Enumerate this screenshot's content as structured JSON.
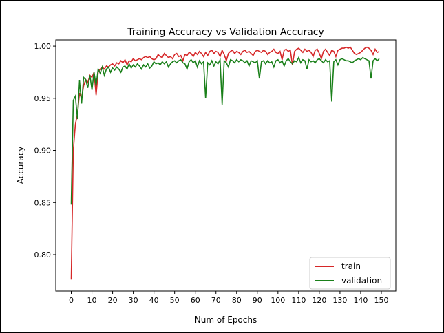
{
  "chart_data": {
    "type": "line",
    "title": "Training Accuracy vs Validation Accuracy",
    "xlabel": "Num of Epochs",
    "ylabel": "Accuracy",
    "xlim": [
      -7.5,
      157
    ],
    "ylim": [
      0.765,
      1.006
    ],
    "xticks": [
      0,
      10,
      20,
      30,
      40,
      50,
      60,
      70,
      80,
      90,
      100,
      110,
      120,
      130,
      140,
      150
    ],
    "yticks": [
      "0.80",
      "0.85",
      "0.90",
      "0.95",
      "1.00"
    ],
    "ytick_values": [
      0.8,
      0.85,
      0.9,
      0.95,
      1.0
    ],
    "grid": false,
    "legend_position": "lower-right",
    "series": [
      {
        "name": "train",
        "color": "#d62728",
        "values": [
          0.776,
          0.9,
          0.925,
          0.935,
          0.955,
          0.95,
          0.962,
          0.968,
          0.965,
          0.972,
          0.97,
          0.975,
          0.953,
          0.975,
          0.978,
          0.98,
          0.978,
          0.981,
          0.98,
          0.982,
          0.983,
          0.981,
          0.984,
          0.983,
          0.986,
          0.984,
          0.987,
          0.982,
          0.986,
          0.985,
          0.988,
          0.986,
          0.987,
          0.988,
          0.987,
          0.989,
          0.99,
          0.989,
          0.99,
          0.988,
          0.987,
          0.988,
          0.992,
          0.99,
          0.989,
          0.993,
          0.991,
          0.989,
          0.99,
          0.988,
          0.992,
          0.993,
          0.99,
          0.991,
          0.986,
          0.992,
          0.991,
          0.994,
          0.993,
          0.99,
          0.994,
          0.992,
          0.995,
          0.993,
          0.99,
          0.994,
          0.991,
          0.995,
          0.996,
          0.993,
          0.995,
          0.994,
          0.99,
          0.996,
          0.992,
          0.986,
          0.993,
          0.995,
          0.996,
          0.993,
          0.995,
          0.994,
          0.992,
          0.995,
          0.996,
          0.994,
          0.995,
          0.993,
          0.991,
          0.995,
          0.996,
          0.995,
          0.994,
          0.996,
          0.995,
          0.992,
          0.994,
          0.995,
          0.997,
          0.994,
          0.993,
          0.995,
          0.987,
          0.996,
          0.997,
          0.995,
          0.996,
          0.982,
          0.995,
          0.997,
          0.998,
          0.996,
          0.994,
          0.997,
          0.995,
          0.996,
          0.994,
          0.99,
          0.996,
          0.997,
          0.993,
          0.988,
          0.995,
          0.997,
          0.994,
          0.991,
          0.996,
          0.995,
          0.99,
          0.996,
          0.997,
          0.998,
          0.998,
          0.999,
          0.998,
          0.999,
          0.996,
          0.993,
          0.992,
          0.993,
          0.994,
          0.996,
          0.998,
          0.999,
          0.998,
          0.996,
          0.992,
          0.997,
          0.994,
          0.995
        ]
      },
      {
        "name": "validation",
        "color": "#1a801a",
        "values": [
          0.848,
          0.948,
          0.952,
          0.93,
          0.967,
          0.945,
          0.97,
          0.968,
          0.96,
          0.972,
          0.958,
          0.975,
          0.962,
          0.978,
          0.974,
          0.98,
          0.972,
          0.978,
          0.98,
          0.975,
          0.979,
          0.977,
          0.98,
          0.978,
          0.975,
          0.98,
          0.981,
          0.978,
          0.983,
          0.979,
          0.982,
          0.98,
          0.983,
          0.981,
          0.978,
          0.982,
          0.98,
          0.983,
          0.979,
          0.981,
          0.985,
          0.983,
          0.984,
          0.982,
          0.985,
          0.983,
          0.985,
          0.98,
          0.983,
          0.985,
          0.986,
          0.984,
          0.986,
          0.987,
          0.984,
          0.983,
          0.978,
          0.985,
          0.987,
          0.984,
          0.986,
          0.98,
          0.986,
          0.983,
          0.985,
          0.95,
          0.984,
          0.982,
          0.986,
          0.981,
          0.985,
          0.983,
          0.987,
          0.944,
          0.986,
          0.984,
          0.98,
          0.987,
          0.986,
          0.984,
          0.987,
          0.985,
          0.987,
          0.986,
          0.984,
          0.986,
          0.981,
          0.986,
          0.985,
          0.984,
          0.986,
          0.969,
          0.985,
          0.986,
          0.983,
          0.986,
          0.984,
          0.985,
          0.98,
          0.986,
          0.987,
          0.984,
          0.986,
          0.981,
          0.986,
          0.988,
          0.985,
          0.983,
          0.986,
          0.985,
          0.989,
          0.984,
          0.987,
          0.986,
          0.978,
          0.987,
          0.985,
          0.986,
          0.984,
          0.987,
          0.988,
          0.986,
          0.984,
          0.987,
          0.985,
          0.986,
          0.947,
          0.985,
          0.987,
          0.982,
          0.987,
          0.988,
          0.987,
          0.986,
          0.986,
          0.985,
          0.984,
          0.986,
          0.987,
          0.988,
          0.987,
          0.989,
          0.988,
          0.987,
          0.986,
          0.969,
          0.986,
          0.988,
          0.986,
          0.988
        ]
      }
    ]
  }
}
